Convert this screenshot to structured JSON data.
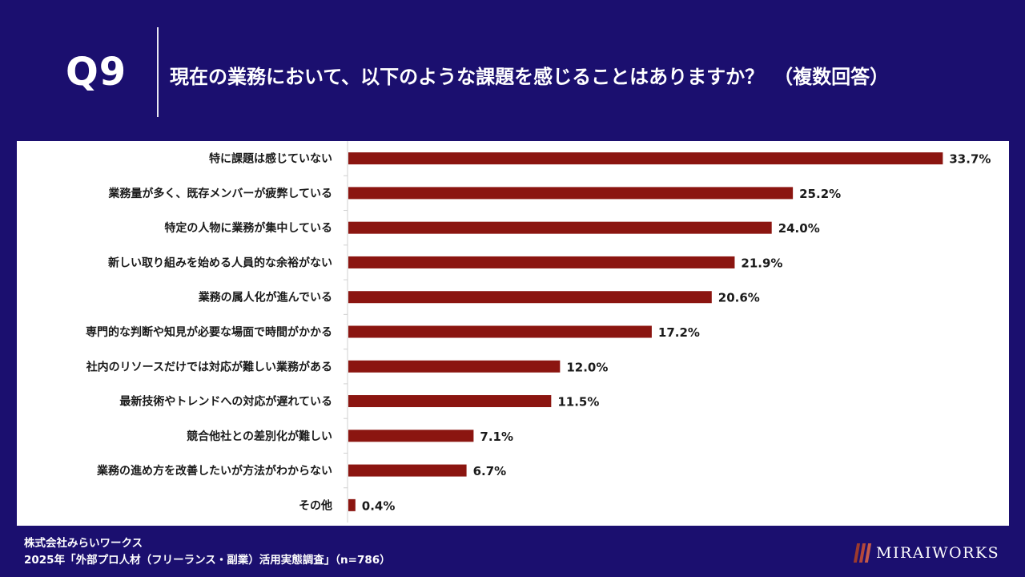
{
  "header": {
    "question_label": "Q9",
    "title": "現在の業務において、以下のような課題を感じることはありますか？　（複数回答）"
  },
  "chart_data": {
    "type": "bar",
    "orientation": "horizontal",
    "categories": [
      "特に課題は感じていない",
      "業務量が多く、既存メンバーが疲弊している",
      "特定の人物に業務が集中している",
      "新しい取り組みを始める人員的な余裕がない",
      "業務の属人化が進んでいる",
      "専門的な判断や知見が必要な場面で時間がかかる",
      "社内のリソースだけでは対応が難しい業務がある",
      "最新技術やトレンドへの対応が遅れている",
      "競合他社との差別化が難しい",
      "業務の進め方を改善したいが方法がわからない",
      "その他"
    ],
    "values": [
      33.7,
      25.2,
      24.0,
      21.9,
      20.6,
      17.2,
      12.0,
      11.5,
      7.1,
      6.7,
      0.4
    ],
    "value_labels": [
      "33.7%",
      "25.2%",
      "24.0%",
      "21.9%",
      "20.6%",
      "17.2%",
      "12.0%",
      "11.5%",
      "7.1%",
      "6.7%",
      "0.4%"
    ],
    "xlim": [
      0,
      34.5
    ],
    "bar_color": "#8b1510"
  },
  "footer": {
    "company": "株式会社みらいワークス",
    "survey": "2025年「外部プロ人材（フリーランス・副業）活用実態調査」（n=786）"
  },
  "logo": {
    "text": "MIRAIWORKS"
  }
}
